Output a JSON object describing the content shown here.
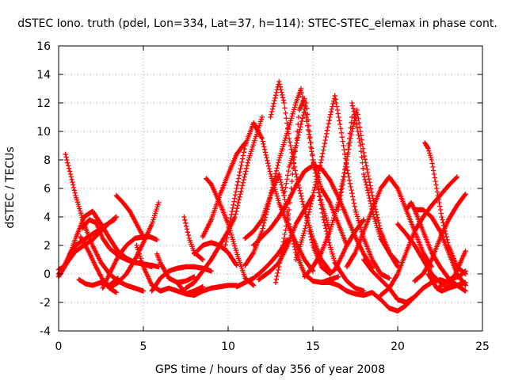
{
  "chart_data": {
    "type": "scatter",
    "title": "dSTEC Iono. truth (pdel, Lon=334, Lat=37, h=114): STEC-STEC_elemax in phase cont.",
    "xlabel": "GPS time / hours of day 356 of year 2008",
    "ylabel": "dSTEC  / TECUs",
    "xlim": [
      0,
      25
    ],
    "ylim": [
      -4,
      16
    ],
    "xticks": [
      0,
      5,
      10,
      15,
      20,
      25
    ],
    "yticks": [
      -4,
      -2,
      0,
      2,
      4,
      6,
      8,
      10,
      12,
      14,
      16
    ],
    "grid": true,
    "legend": "none",
    "marker": "plus",
    "color": "#ff0000",
    "series": [
      {
        "x": [
          0.0,
          0.5,
          1.0,
          1.5,
          2.0,
          2.5,
          3.0,
          3.4
        ],
        "y": [
          0.0,
          0.8,
          1.6,
          2.0,
          2.4,
          3.0,
          3.6,
          4.0
        ]
      },
      {
        "x": [
          0.4,
          0.7,
          1.0,
          1.5,
          2.0,
          2.5,
          3.0,
          3.5,
          4.0,
          4.5,
          5.0
        ],
        "y": [
          8.4,
          7.0,
          5.5,
          3.5,
          2.0,
          0.8,
          0.0,
          -0.5,
          -0.8,
          -1.0,
          -1.2
        ]
      },
      {
        "x": [
          0.0,
          0.5,
          1.0,
          1.5,
          2.0,
          2.5,
          3.0,
          3.5,
          4.0,
          4.5,
          5.0,
          5.5,
          5.9
        ],
        "y": [
          -0.2,
          0.8,
          2.5,
          4.0,
          4.4,
          3.5,
          2.5,
          1.6,
          1.1,
          0.8,
          0.7,
          0.6,
          0.5
        ]
      },
      {
        "x": [
          0.0,
          0.3,
          0.7,
          1.0,
          1.5,
          2.0,
          2.5,
          3.0,
          3.3
        ],
        "y": [
          0.3,
          0.5,
          1.5,
          2.0,
          2.4,
          2.8,
          3.2,
          3.6,
          3.8
        ]
      },
      {
        "x": [
          1.2,
          1.6,
          2.0,
          2.5,
          3.0,
          3.5
        ],
        "y": [
          -0.4,
          -0.7,
          -0.8,
          -0.6,
          -0.8,
          -0.3
        ]
      },
      {
        "x": [
          1.4,
          1.8,
          2.2,
          2.6,
          3.0,
          3.5,
          4.0,
          4.5,
          5.0,
          5.5
        ],
        "y": [
          3.2,
          3.8,
          3.6,
          2.5,
          1.8,
          1.3,
          1.0,
          0.8,
          0.7,
          0.5
        ]
      },
      {
        "x": [
          1.3,
          1.8,
          2.2,
          2.6,
          3.0,
          3.4
        ],
        "y": [
          2.6,
          1.5,
          0.5,
          -0.4,
          -1.0,
          -1.3
        ]
      },
      {
        "x": [
          2.6,
          3.0,
          3.5,
          4.0,
          4.5,
          5.0
        ],
        "y": [
          -1.0,
          0.0,
          1.2,
          2.0,
          2.5,
          2.6
        ]
      },
      {
        "x": [
          3.4,
          3.8,
          4.2,
          4.6,
          5.0,
          5.4,
          5.8
        ],
        "y": [
          5.5,
          5.0,
          4.4,
          3.5,
          2.6,
          2.6,
          2.4
        ]
      },
      {
        "x": [
          3.0,
          3.5,
          4.0,
          4.5,
          5.0,
          5.5,
          5.9
        ],
        "y": [
          -1.0,
          -0.6,
          0.0,
          1.0,
          2.2,
          3.5,
          5.0
        ]
      },
      {
        "x": [
          4.6,
          5.0,
          5.5,
          6.0,
          6.5,
          7.0,
          7.5,
          8.0,
          8.5
        ],
        "y": [
          2.0,
          0.5,
          -0.8,
          -1.2,
          -1.0,
          -1.2,
          -1.4,
          -1.2,
          -0.9
        ]
      },
      {
        "x": [
          5.8,
          6.0,
          6.5,
          7.0,
          7.5,
          8.0
        ],
        "y": [
          1.4,
          0.8,
          -0.3,
          -0.6,
          -0.5,
          -0.2
        ]
      },
      {
        "x": [
          5.5,
          6.0,
          6.5,
          7.0,
          7.5,
          8.0,
          8.5,
          9.0
        ],
        "y": [
          -1.2,
          -0.3,
          0.2,
          0.4,
          0.5,
          0.5,
          0.4,
          0.2
        ]
      },
      {
        "x": [
          7.0,
          7.5,
          8.0,
          8.5,
          9.0,
          9.5,
          10.0,
          10.5
        ],
        "y": [
          -0.6,
          -1.4,
          -1.5,
          -1.2,
          -1.0,
          -0.9,
          -0.8,
          -0.8
        ]
      },
      {
        "x": [
          7.4,
          7.7,
          8.0,
          8.5
        ],
        "y": [
          4.0,
          2.5,
          1.5,
          1.0
        ]
      },
      {
        "x": [
          8.0,
          8.5,
          9.0,
          9.5,
          10.0,
          10.5
        ],
        "y": [
          1.4,
          2.0,
          2.2,
          2.0,
          1.5,
          0.6
        ]
      },
      {
        "x": [
          8.5,
          9.0,
          9.5,
          10.0,
          10.5,
          11.0
        ],
        "y": [
          2.6,
          3.8,
          5.5,
          7.0,
          8.4,
          9.2
        ]
      },
      {
        "x": [
          7.5,
          8.0,
          8.5,
          9.0,
          9.5,
          10.0,
          10.4,
          10.8,
          11.2,
          11.6,
          12.0
        ],
        "y": [
          -1.0,
          -0.6,
          0.2,
          1.0,
          2.0,
          3.0,
          4.0,
          6.0,
          8.0,
          9.5,
          11.0
        ]
      },
      {
        "x": [
          8.7,
          9.0,
          9.5,
          10.0,
          10.5,
          11.0,
          11.5
        ],
        "y": [
          6.7,
          6.3,
          5.0,
          3.5,
          1.5,
          -0.3,
          -0.8
        ]
      },
      {
        "x": [
          9.8,
          10.0,
          10.5,
          11.0,
          11.5,
          12.0,
          12.5,
          13.0,
          13.5,
          14.0,
          14.5,
          15.0
        ],
        "y": [
          1.8,
          3.0,
          6.0,
          9.0,
          10.6,
          9.5,
          7.0,
          5.0,
          3.5,
          2.2,
          1.0,
          0.2
        ]
      },
      {
        "x": [
          10.5,
          11.0,
          11.5,
          12.0,
          12.5,
          13.0,
          13.5
        ],
        "y": [
          -0.9,
          -0.6,
          -0.3,
          0.2,
          0.8,
          1.5,
          2.4
        ]
      },
      {
        "x": [
          11.5,
          12.0,
          12.5,
          13.0,
          13.5,
          14.0,
          14.5,
          15.0,
          15.5,
          16.0,
          16.5,
          17.0,
          17.5,
          18.0,
          18.5
        ],
        "y": [
          2.0,
          2.6,
          3.2,
          4.0,
          5.0,
          6.2,
          7.2,
          7.6,
          7.4,
          6.6,
          5.4,
          4.0,
          2.6,
          1.4,
          0.4
        ]
      },
      {
        "x": [
          11.0,
          11.5,
          12.0,
          12.5,
          13.0,
          13.3,
          13.6,
          14.0,
          14.5,
          15.0,
          15.5,
          16.0,
          16.5
        ],
        "y": [
          2.5,
          3.0,
          3.8,
          5.5,
          7.0,
          5.5,
          3.5,
          1.5,
          0.0,
          -0.5,
          -0.6,
          -0.4,
          -0.2
        ]
      },
      {
        "x": [
          12.5,
          13.0,
          13.3,
          13.6,
          14.0,
          14.5,
          15.0,
          15.5,
          16.0
        ],
        "y": [
          11.0,
          13.5,
          12.0,
          9.5,
          7.0,
          4.5,
          2.5,
          1.0,
          0.2
        ]
      },
      {
        "x": [
          11.8,
          12.5,
          13.0,
          13.5,
          14.0,
          14.5,
          15.0
        ],
        "y": [
          -0.4,
          0.2,
          0.8,
          2.0,
          3.5,
          4.5,
          5.5
        ]
      },
      {
        "x": [
          11.0,
          11.5,
          12.0,
          12.5,
          13.0,
          13.5,
          14.0,
          14.3,
          14.6,
          15.0,
          15.5,
          16.0,
          16.5,
          17.0
        ],
        "y": [
          0.6,
          1.5,
          3.0,
          5.5,
          8.0,
          10.0,
          12.0,
          13.0,
          11.0,
          8.0,
          6.0,
          5.0,
          3.5,
          2.0
        ]
      },
      {
        "x": [
          12.8,
          13.0,
          13.3,
          13.6,
          13.8,
          14.0,
          14.2,
          14.5
        ],
        "y": [
          -0.6,
          0.5,
          2.5,
          4.5,
          7.0,
          9.0,
          11.5,
          12.3
        ]
      },
      {
        "x": [
          13.3,
          13.6,
          14.0,
          14.3,
          14.6,
          14.8,
          15.0,
          15.5,
          16.0
        ],
        "y": [
          5.5,
          7.5,
          9.0,
          10.5,
          12.0,
          10.0,
          8.0,
          5.0,
          3.0
        ]
      },
      {
        "x": [
          14.8,
          15.0,
          15.5,
          16.0,
          16.3,
          16.6,
          17.0,
          17.5,
          18.0
        ],
        "y": [
          3.0,
          2.0,
          0.5,
          0.0,
          0.3,
          1.0,
          2.0,
          3.0,
          3.8
        ]
      },
      {
        "x": [
          14.0,
          14.5,
          15.0,
          15.5,
          16.0,
          16.3
        ],
        "y": [
          1.0,
          3.0,
          5.5,
          8.0,
          11.0,
          12.5
        ]
      },
      {
        "x": [
          16.3,
          16.6,
          17.0,
          17.5,
          18.0,
          18.5,
          19.0,
          19.5
        ],
        "y": [
          12.5,
          10.5,
          7.5,
          4.5,
          2.5,
          1.0,
          0.0,
          -0.3
        ]
      },
      {
        "x": [
          14.5,
          15.0,
          15.5,
          16.0,
          16.5,
          17.0,
          17.3
        ],
        "y": [
          -0.2,
          0.5,
          1.5,
          3.0,
          5.0,
          8.0,
          11.0
        ]
      },
      {
        "x": [
          16.5,
          16.8,
          17.0,
          17.3,
          17.6,
          18.0,
          18.5,
          19.0,
          19.5,
          20.0
        ],
        "y": [
          4.5,
          6.5,
          8.0,
          10.0,
          11.5,
          8.5,
          5.5,
          3.0,
          1.5,
          0.5
        ]
      },
      {
        "x": [
          15.3,
          15.6,
          16.0,
          16.3,
          16.6,
          17.0,
          17.5,
          18.0
        ],
        "y": [
          6.0,
          4.0,
          2.0,
          0.8,
          0.2,
          -0.5,
          -1.0,
          -1.2
        ]
      },
      {
        "x": [
          17.3,
          17.5,
          17.8,
          18.0,
          18.3,
          18.6,
          19.0,
          19.5,
          20.0
        ],
        "y": [
          12.0,
          11.0,
          9.0,
          7.0,
          5.5,
          4.0,
          2.5,
          1.5,
          0.8
        ]
      },
      {
        "x": [
          15.5,
          16.0,
          16.5,
          17.0,
          17.5,
          18.0,
          18.5,
          19.0,
          19.5,
          20.0,
          20.5,
          21.0,
          21.5
        ],
        "y": [
          -0.6,
          -0.6,
          -0.8,
          -1.2,
          -1.4,
          -1.5,
          -1.3,
          -1.8,
          -2.4,
          -2.6,
          -2.2,
          -1.6,
          -1.0
        ]
      },
      {
        "x": [
          17.0,
          17.5,
          18.0,
          18.5,
          19.0,
          19.5,
          20.0,
          20.5,
          21.0,
          21.5,
          22.0
        ],
        "y": [
          0.5,
          1.5,
          3.0,
          4.5,
          6.0,
          6.8,
          6.0,
          4.5,
          3.0,
          1.5,
          0.5
        ]
      },
      {
        "x": [
          18.0,
          18.5,
          19.0,
          19.5,
          20.0,
          20.5,
          21.0,
          21.5,
          22.0,
          22.5,
          23.0,
          23.5
        ],
        "y": [
          1.0,
          0.2,
          -0.4,
          -1.0,
          -1.8,
          -2.0,
          -1.6,
          -1.0,
          -0.6,
          -0.4,
          -0.6,
          -0.8
        ]
      },
      {
        "x": [
          19.0,
          19.5,
          20.0,
          20.5,
          21.0,
          21.5,
          22.0,
          22.5,
          23.0,
          23.5
        ],
        "y": [
          -1.5,
          -1.0,
          0.0,
          1.5,
          3.0,
          4.0,
          4.8,
          5.5,
          6.2,
          6.8
        ]
      },
      {
        "x": [
          20.0,
          20.5,
          21.0,
          21.5,
          22.0,
          22.5,
          23.0,
          23.5,
          24.0
        ],
        "y": [
          3.5,
          2.8,
          2.0,
          1.0,
          0.0,
          -0.6,
          -1.0,
          -0.8,
          -0.6
        ]
      },
      {
        "x": [
          20.5,
          20.8,
          21.0,
          21.5,
          22.0,
          22.5,
          23.0,
          23.5,
          24.0
        ],
        "y": [
          4.5,
          5.0,
          4.5,
          3.0,
          1.5,
          0.5,
          -0.3,
          -0.8,
          -1.2
        ]
      },
      {
        "x": [
          21.0,
          21.5,
          22.0,
          22.5,
          23.0,
          23.5,
          24.0
        ],
        "y": [
          4.5,
          4.5,
          4.0,
          3.0,
          1.5,
          0.0,
          -0.8
        ]
      },
      {
        "x": [
          21.6,
          21.8,
          22.0,
          22.3,
          22.6,
          23.0,
          23.5,
          24.0
        ],
        "y": [
          9.2,
          8.8,
          8.0,
          6.0,
          4.0,
          2.0,
          0.5,
          0.0
        ]
      },
      {
        "x": [
          21.0,
          21.5,
          22.0,
          22.5,
          23.0,
          23.5,
          24.0
        ],
        "y": [
          -0.5,
          0.0,
          1.0,
          2.5,
          3.8,
          4.8,
          5.6
        ]
      },
      {
        "x": [
          21.8,
          22.3,
          22.6,
          23.0,
          23.4,
          23.7,
          24.0
        ],
        "y": [
          0.0,
          -1.0,
          -1.2,
          -1.0,
          0.0,
          0.8,
          1.6
        ]
      },
      {
        "x": [
          22.4,
          22.8,
          23.2,
          23.6,
          24.0
        ],
        "y": [
          -1.0,
          -0.6,
          -0.3,
          -0.2,
          0.2
        ]
      }
    ]
  }
}
